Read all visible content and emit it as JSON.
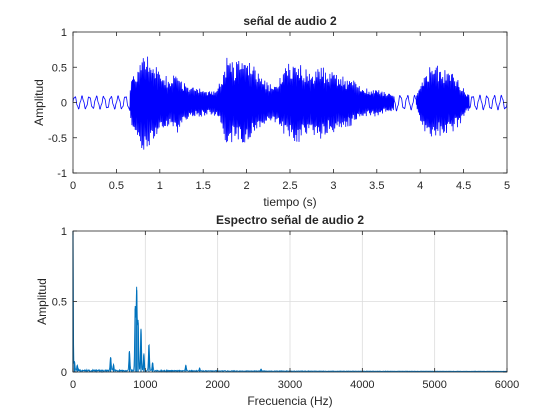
{
  "chart_data": [
    {
      "type": "line",
      "title": "señal de audio 2",
      "xlabel": "tiempo (s)",
      "ylabel": "Amplitud",
      "xlim": [
        0,
        5
      ],
      "ylim": [
        -1,
        1
      ],
      "xticks": [
        "0",
        "0.5",
        "1",
        "1.5",
        "2",
        "2.5",
        "3",
        "3.5",
        "4",
        "4.5",
        "5"
      ],
      "yticks": [
        "-1",
        "-0.5",
        "0",
        "0.5",
        "1"
      ],
      "grid": false,
      "color": "#0000ff",
      "series": [
        {
          "envelope": {
            "t": [
              0,
              0.5,
              0.65,
              0.68,
              0.75,
              0.8,
              0.9,
              1.0,
              1.1,
              1.2,
              1.25,
              1.35,
              1.45,
              1.55,
              1.65,
              1.72,
              1.78,
              1.85,
              1.95,
              2.05,
              2.15,
              2.2,
              2.3,
              2.45,
              2.55,
              2.65,
              2.75,
              2.85,
              2.95,
              3.05,
              3.2,
              3.3,
              3.4,
              3.5,
              3.6,
              3.7,
              3.8,
              3.95,
              4.05,
              4.15,
              4.25,
              4.35,
              4.45,
              4.52,
              4.6,
              5.0
            ],
            "amp": [
              0.09,
              0.09,
              0.1,
              0.45,
              0.55,
              0.75,
              0.6,
              0.5,
              0.35,
              0.45,
              0.3,
              0.25,
              0.22,
              0.18,
              0.2,
              0.35,
              0.7,
              0.6,
              0.65,
              0.55,
              0.45,
              0.35,
              0.25,
              0.5,
              0.65,
              0.5,
              0.45,
              0.55,
              0.45,
              0.4,
              0.35,
              0.25,
              0.2,
              0.2,
              0.15,
              0.12,
              0.1,
              0.1,
              0.45,
              0.55,
              0.5,
              0.45,
              0.35,
              0.15,
              0.1,
              0.1
            ]
          }
        }
      ]
    },
    {
      "type": "line",
      "title": "Espectro señal de audio 2",
      "xlabel": "Frecuencia (Hz)",
      "ylabel": "Amplitud",
      "xlim": [
        0,
        6000
      ],
      "ylim": [
        0,
        1
      ],
      "xticks": [
        "0",
        "1000",
        "2000",
        "3000",
        "4000",
        "5000",
        "6000"
      ],
      "yticks": [
        "0",
        "0.5",
        "1"
      ],
      "grid": true,
      "color": "#0072bd",
      "series": [
        {
          "peaks": [
            {
              "f": 0,
              "a": 1.0
            },
            {
              "f": 20,
              "a": 0.07
            },
            {
              "f": 60,
              "a": 0.04
            },
            {
              "f": 520,
              "a": 0.1
            },
            {
              "f": 560,
              "a": 0.04
            },
            {
              "f": 780,
              "a": 0.14
            },
            {
              "f": 860,
              "a": 0.45
            },
            {
              "f": 880,
              "a": 0.58
            },
            {
              "f": 900,
              "a": 0.35
            },
            {
              "f": 940,
              "a": 0.3
            },
            {
              "f": 980,
              "a": 0.12
            },
            {
              "f": 1050,
              "a": 0.19
            },
            {
              "f": 1100,
              "a": 0.06
            },
            {
              "f": 1560,
              "a": 0.04
            },
            {
              "f": 1750,
              "a": 0.02
            },
            {
              "f": 2600,
              "a": 0.015
            }
          ]
        }
      ]
    }
  ]
}
